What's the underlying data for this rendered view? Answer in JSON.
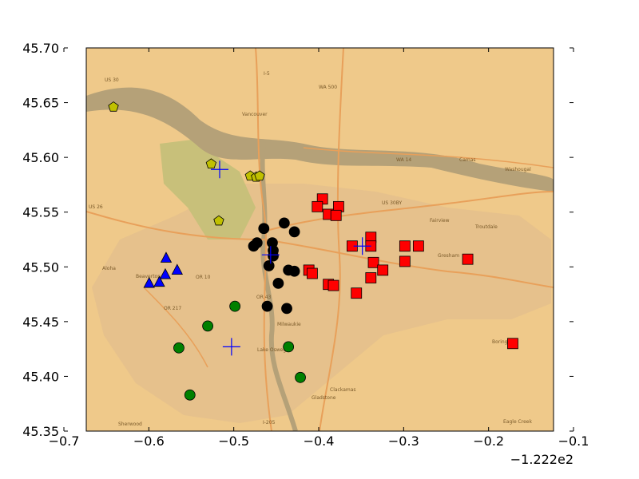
{
  "chart_data": {
    "type": "scatter",
    "title": "",
    "xlabel": "",
    "ylabel": "",
    "x_offset_label": "−1.222e2",
    "xlim": [
      -0.675,
      -0.125
    ],
    "ylim": [
      45.35,
      45.7
    ],
    "x_ticks": [
      -0.7,
      -0.6,
      -0.5,
      -0.4,
      -0.3,
      -0.2,
      -0.1
    ],
    "x_tick_labels": [
      "−0.7",
      "−0.6",
      "−0.5",
      "−0.4",
      "−0.3",
      "−0.2",
      "−0.1"
    ],
    "y_ticks": [
      45.35,
      45.4,
      45.45,
      45.5,
      45.55,
      45.6,
      45.65,
      45.7
    ],
    "y_tick_labels": [
      "45.35",
      "45.40",
      "45.45",
      "45.50",
      "45.55",
      "45.60",
      "45.65",
      "45.70"
    ],
    "grid": false,
    "legend": "none",
    "background": "street basemap (Portland, Oregon area)",
    "basemap_labels": [
      "Vancouver",
      "Camas",
      "Washougal",
      "Gresham",
      "Milwaukie",
      "Clackamas",
      "Gladstone",
      "Lake Oswego",
      "Sherwood",
      "Aloha",
      "Beaverton",
      "Eagle Creek",
      "Boring",
      "Fairview",
      "Troutdale",
      "US 30",
      "I-5",
      "WA 500",
      "WA 14",
      "US 26",
      "OR 10",
      "OR 217",
      "I-205",
      "OR 43",
      "US 30BY"
    ],
    "series": [
      {
        "marker": "square",
        "color": "#ff0000",
        "points": [
          [
            -0.397,
            45.562
          ],
          [
            -0.403,
            45.555
          ],
          [
            -0.39,
            45.548
          ],
          [
            -0.378,
            45.555
          ],
          [
            -0.381,
            45.547
          ],
          [
            -0.362,
            45.519
          ],
          [
            -0.34,
            45.527
          ],
          [
            -0.34,
            45.519
          ],
          [
            -0.337,
            45.504
          ],
          [
            -0.326,
            45.497
          ],
          [
            -0.3,
            45.519
          ],
          [
            -0.3,
            45.505
          ],
          [
            -0.284,
            45.519
          ],
          [
            -0.226,
            45.507
          ],
          [
            -0.173,
            45.43
          ],
          [
            -0.413,
            45.497
          ],
          [
            -0.409,
            45.494
          ],
          [
            -0.39,
            45.484
          ],
          [
            -0.384,
            45.483
          ],
          [
            -0.357,
            45.476
          ],
          [
            -0.34,
            45.49
          ]
        ]
      },
      {
        "marker": "circle",
        "color": "#000000",
        "points": [
          [
            -0.466,
            45.535
          ],
          [
            -0.442,
            45.54
          ],
          [
            -0.43,
            45.532
          ],
          [
            -0.474,
            45.522
          ],
          [
            -0.478,
            45.519
          ],
          [
            -0.456,
            45.522
          ],
          [
            -0.455,
            45.515
          ],
          [
            -0.455,
            45.51
          ],
          [
            -0.46,
            45.501
          ],
          [
            -0.437,
            45.497
          ],
          [
            -0.43,
            45.496
          ],
          [
            -0.449,
            45.485
          ],
          [
            -0.462,
            45.464
          ],
          [
            -0.439,
            45.462
          ]
        ]
      },
      {
        "marker": "circle",
        "color": "#008000",
        "points": [
          [
            -0.5,
            45.464
          ],
          [
            -0.532,
            45.446
          ],
          [
            -0.566,
            45.426
          ],
          [
            -0.437,
            45.427
          ],
          [
            -0.423,
            45.399
          ],
          [
            -0.553,
            45.383
          ]
        ]
      },
      {
        "marker": "triangle",
        "color": "#0000ff",
        "points": [
          [
            -0.581,
            45.508
          ],
          [
            -0.568,
            45.497
          ],
          [
            -0.582,
            45.493
          ],
          [
            -0.601,
            45.485
          ],
          [
            -0.589,
            45.486
          ]
        ]
      },
      {
        "marker": "pentagon",
        "color": "#c0c000",
        "points": [
          [
            -0.643,
            45.646
          ],
          [
            -0.528,
            45.594
          ],
          [
            -0.482,
            45.583
          ],
          [
            -0.475,
            45.582
          ],
          [
            -0.471,
            45.583
          ],
          [
            -0.519,
            45.542
          ]
        ]
      },
      {
        "marker": "plus",
        "color": "#0000ff",
        "points": [
          [
            -0.518,
            45.589
          ],
          [
            -0.504,
            45.427
          ],
          [
            -0.458,
            45.511
          ],
          [
            -0.35,
            45.519
          ]
        ]
      }
    ]
  }
}
